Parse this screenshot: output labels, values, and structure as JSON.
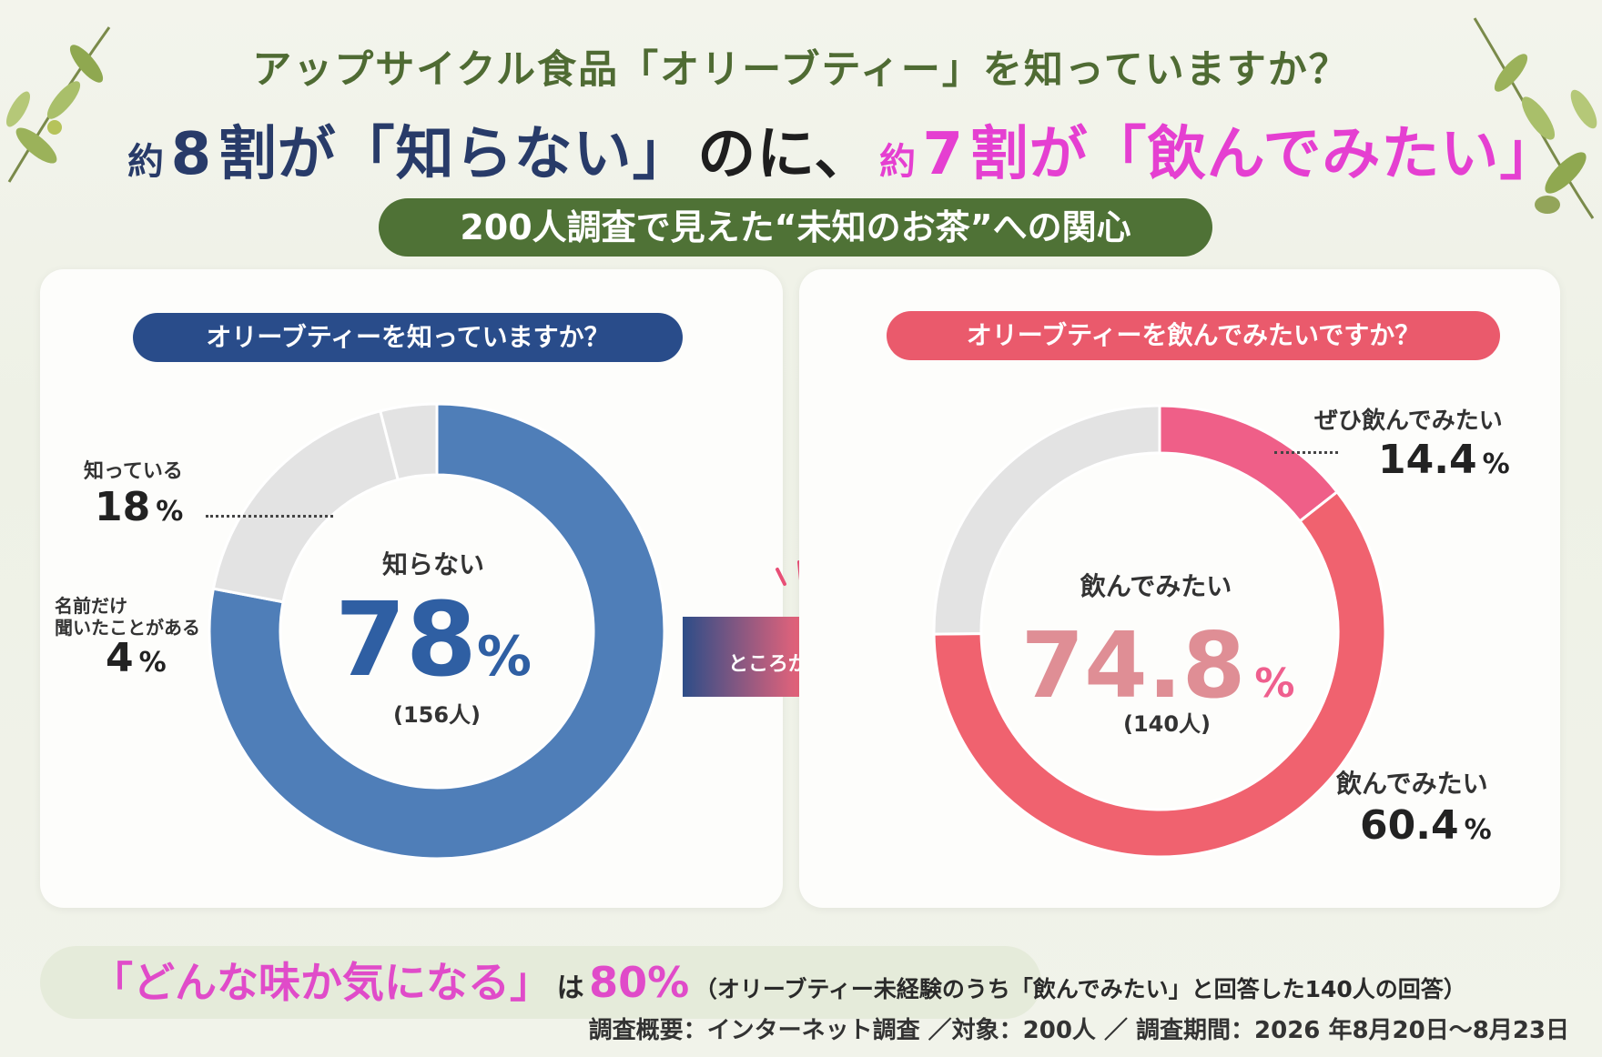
{
  "header": {
    "question_title": "アップサイクル食品「オリーブティー」を知っていますか？",
    "headline": {
      "part1_small": "約",
      "part1_big": "8",
      "part2": "割が「知らない」",
      "part3": "のに、",
      "part4_small": "約",
      "part4_big": "7",
      "part5": "割が「飲んでみたい」"
    },
    "subtitle": "200人調査で見えた“未知のお茶”への関心"
  },
  "left_panel": {
    "question": "オリーブティーを知っていますか？",
    "center_title": "知らない",
    "center_value": "78",
    "center_unit": "%",
    "center_count": "(156人)",
    "labels": {
      "know_name": "知っている",
      "know_value": "18",
      "know_unit": "%",
      "heard_name_line1": "名前だけ",
      "heard_name_line2": "聞いたことがある",
      "heard_value": "4",
      "heard_unit": "%"
    }
  },
  "arrow": {
    "label": "ところが…"
  },
  "right_panel": {
    "question": "オリーブティーを飲んでみたいですか？",
    "center_title": "飲んでみたい",
    "center_value": "74.8",
    "center_unit": "%",
    "center_count": "(140人)",
    "labels": {
      "strong_name": "ぜひ飲んでみたい",
      "strong_value": "14.4",
      "strong_unit": "%",
      "want_name": "飲んでみたい",
      "want_value": "60.4",
      "want_unit": "%"
    }
  },
  "bottom": {
    "highlight": "「どんな味か気になる」",
    "is_text": "は",
    "percent": "80%",
    "note": "（オリーブティー未経験のうち「飲んでみたい」と回答した140人の回答）",
    "survey_info": "調査概要：インターネット調査 ／対象：200人 ／ 調査期間：2026 年8月20日～8月23日"
  },
  "colors": {
    "navy": "#294c8a",
    "donut_blue": "#4f7eb8",
    "donut_grey": "#e3e3e3",
    "pink_strong": "#ef5f88",
    "pink_main": "#f0626f",
    "pink_text": "#e04bc9",
    "olive": "#4f7236"
  },
  "chart_data": [
    {
      "type": "pie",
      "categories": [
        "知らない",
        "知っている",
        "名前だけ聞いたことがある"
      ],
      "values": [
        78,
        18,
        4
      ],
      "colors": [
        "#4f7eb8",
        "#e3e3e3",
        "#e3e3e3"
      ],
      "title": "オリーブティーを知っていますか？"
    },
    {
      "type": "pie",
      "categories": [
        "ぜひ飲んでみたい",
        "飲んでみたい",
        ""
      ],
      "values": [
        14.4,
        60.4,
        25.2
      ],
      "colors": [
        "#ef5f88",
        "#f0626f",
        "#e3e3e3"
      ],
      "title": "オリーブティーを飲んでみたいですか？"
    }
  ]
}
